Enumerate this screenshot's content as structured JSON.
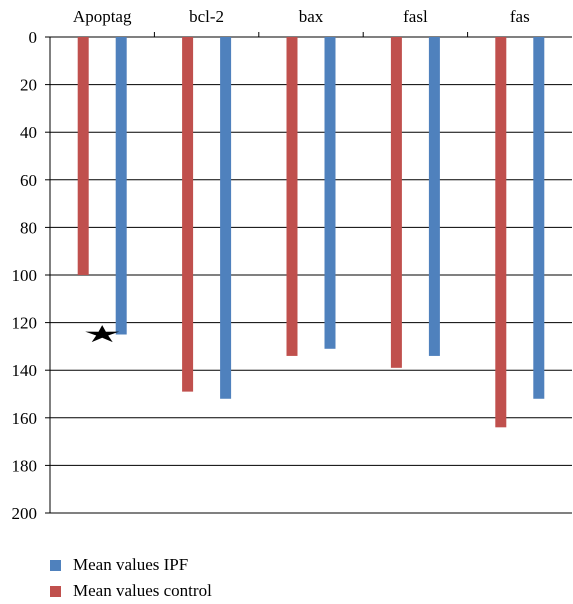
{
  "chart_data": {
    "type": "bar",
    "orientation": "vertical-inverted",
    "categories": [
      "Apoptag",
      "bcl-2",
      "bax",
      "fasl",
      "fas"
    ],
    "series": [
      {
        "name": "Mean values control",
        "color": "#c0504d",
        "values": [
          100,
          149,
          134,
          139,
          164
        ]
      },
      {
        "name": "Mean values IPF",
        "color": "#4f81bd",
        "values": [
          125,
          152,
          131,
          134,
          152
        ]
      }
    ],
    "y_axis": {
      "min": 0,
      "max": 200,
      "step": 20,
      "reversed": true,
      "ticks": [
        "0",
        "20",
        "40",
        "60",
        "80",
        "100",
        "120",
        "140",
        "160",
        "180",
        "200"
      ]
    },
    "category_axis_position": "top",
    "grid": true,
    "legend_position": "bottom-left",
    "annotations": [
      {
        "type": "star-marker",
        "category": "Apoptag",
        "value": 125
      }
    ]
  },
  "legend": {
    "items": [
      {
        "label": "Mean values IPF",
        "color": "#4f81bd"
      },
      {
        "label": "Mean values control",
        "color": "#c0504d"
      }
    ]
  }
}
